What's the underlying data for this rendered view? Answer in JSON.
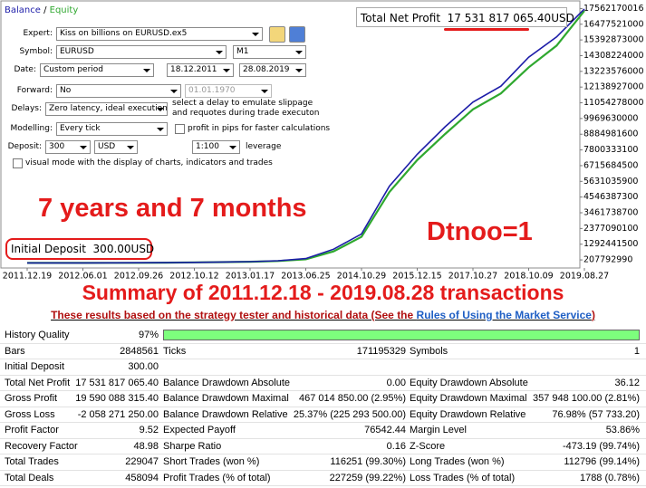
{
  "chart_data": {
    "type": "line",
    "categories": [
      "2011.12.19",
      null,
      "2012.06.01",
      null,
      "2012.09.26",
      null,
      "2012.10.12",
      null,
      "2013.01.17",
      null,
      "2013.06.25",
      null,
      "2014.10.29",
      null,
      "2015.12.15",
      null,
      "2017.10.27",
      null,
      "2018.10.09",
      null,
      "2019.08.27"
    ],
    "series": [
      {
        "name": "Balance",
        "color": "#1c1ca8",
        "values": [
          0,
          0,
          1000000,
          5000000,
          10000000,
          20000000,
          40000000,
          60000000,
          90000000,
          150000000,
          300000000,
          950000000,
          2000000000,
          5300000000,
          7500000000,
          9400000000,
          11100000000,
          12200000000,
          14200000000,
          15600000000,
          17531817065
        ]
      },
      {
        "name": "Equity",
        "color": "#2fa82f",
        "values": [
          0,
          0,
          1000000,
          4000000,
          9000000,
          18000000,
          35000000,
          55000000,
          80000000,
          130000000,
          250000000,
          800000000,
          1800000000,
          4900000000,
          7100000000,
          8900000000,
          10600000000,
          11700000000,
          13500000000,
          15000000000,
          17400000000
        ]
      }
    ],
    "legend_separator": "/",
    "ylim": [
      -100000000,
      17900000000
    ],
    "yticks": [
      207792990,
      1292441500,
      2377090100,
      3461738700,
      4546387300,
      5631035900,
      6715684500,
      7800333100,
      8884981600,
      9969630000,
      11054278000,
      12138927000,
      13223576000,
      14308224000,
      15392873000,
      16477521000,
      17562170016
    ],
    "grid": false
  },
  "tester_settings": {
    "expert": {
      "label": "Expert:",
      "value": "Kiss on billions on EURUSD.ex5"
    },
    "symbol": {
      "label": "Symbol:",
      "value": "EURUSD",
      "period": "M1"
    },
    "date": {
      "label": "Date:",
      "mode": "Custom period",
      "from": "18.12.2011",
      "to": "28.08.2019"
    },
    "forward": {
      "label": "Forward:",
      "value": "No",
      "date": "01.01.1970"
    },
    "delays": {
      "label": "Delays:",
      "value": "Zero latency, ideal execution",
      "hint": "select a delay to emulate slippage and requotes during trade executon"
    },
    "modelling": {
      "label": "Modelling:",
      "value": "Every tick",
      "option": "profit in pips for faster calculations"
    },
    "deposit": {
      "label": "Deposit:",
      "value": "300",
      "currency": "USD",
      "leverage": "1:100",
      "leverage_label": "leverage"
    },
    "visual_mode": "visual mode with the display of charts, indicators and trades"
  },
  "annotations": {
    "net_profit": {
      "label": "Total Net Profit",
      "value": "17 531 817 065.40",
      "currency": "USD"
    },
    "duration": "7 years and 7 months",
    "initial_deposit": {
      "label": "Initial Deposit",
      "value": "300.00USD"
    },
    "setting": "Dtnoo=1"
  },
  "summary": {
    "title": "Summary of 2011.12.18 - 2019.08.28 transactions",
    "note": "These results based on the strategy tester and historical data (See the ",
    "link": "Rules of Using the Market Service",
    "note_end": ")"
  },
  "report": {
    "rows": [
      [
        "History Quality",
        "97%"
      ],
      [
        "Bars",
        "2848561",
        "Ticks",
        "171195329",
        "Symbols",
        "1"
      ],
      [
        "Initial Deposit",
        "300.00"
      ],
      [
        "Total Net Profit",
        "17 531 817 065.40",
        "Balance Drawdown Absolute",
        "0.00",
        "Equity Drawdown Absolute",
        "36.12"
      ],
      [
        "Gross Profit",
        "19 590 088 315.40",
        "Balance Drawdown Maximal",
        "467 014 850.00 (2.95%)",
        "Equity Drawdown Maximal",
        "357 948 100.00 (2.81%)"
      ],
      [
        "Gross Loss",
        "-2 058 271 250.00",
        "Balance Drawdown Relative",
        "25.37% (225 293 500.00)",
        "Equity Drawdown Relative",
        "76.98% (57 733.20)"
      ],
      [
        "Profit Factor",
        "9.52",
        "Expected Payoff",
        "76542.44",
        "Margin Level",
        "53.86%"
      ],
      [
        "Recovery Factor",
        "48.98",
        "Sharpe Ratio",
        "0.16",
        "Z-Score",
        "-473.19 (99.74%)"
      ],
      [
        "Total Trades",
        "229047",
        "Short Trades (won %)",
        "116251 (99.30%)",
        "Long Trades (won %)",
        "112796 (99.14%)"
      ],
      [
        "Total Deals",
        "458094",
        "Profit Trades (% of total)",
        "227259 (99.22%)",
        "Loss Trades (% of total)",
        "1788 (0.78%)"
      ]
    ]
  }
}
